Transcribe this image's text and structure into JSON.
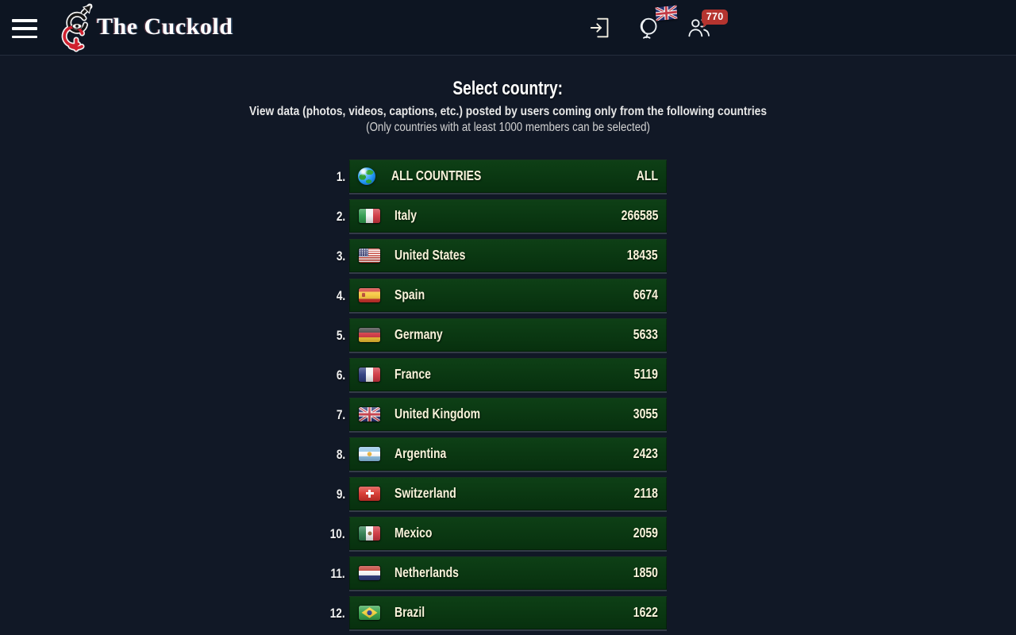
{
  "header": {
    "brand": "The Cuckold",
    "members_badge": "770",
    "icons": [
      "menu-icon",
      "site-logo-icon",
      "login-icon",
      "language-globe-icon",
      "uk-flag-icon",
      "members-icon"
    ]
  },
  "page": {
    "title": "Select country:",
    "subtitle": "View data (photos, videos, captions, etc.) posted by users coming only from the following countries",
    "note": "(Only countries with at least 1000 members can be selected)"
  },
  "countries": [
    {
      "rank": "1.",
      "name": "ALL COUNTRIES",
      "count": "ALL",
      "flag": "globe"
    },
    {
      "rank": "2.",
      "name": "Italy",
      "count": "266585",
      "flag": "it"
    },
    {
      "rank": "3.",
      "name": "United States",
      "count": "18435",
      "flag": "us"
    },
    {
      "rank": "4.",
      "name": "Spain",
      "count": "6674",
      "flag": "es"
    },
    {
      "rank": "5.",
      "name": "Germany",
      "count": "5633",
      "flag": "de"
    },
    {
      "rank": "6.",
      "name": "France",
      "count": "5119",
      "flag": "fr"
    },
    {
      "rank": "7.",
      "name": "United Kingdom",
      "count": "3055",
      "flag": "gb"
    },
    {
      "rank": "8.",
      "name": "Argentina",
      "count": "2423",
      "flag": "ar"
    },
    {
      "rank": "9.",
      "name": "Switzerland",
      "count": "2118",
      "flag": "ch"
    },
    {
      "rank": "10.",
      "name": "Mexico",
      "count": "2059",
      "flag": "mx"
    },
    {
      "rank": "11.",
      "name": "Netherlands",
      "count": "1850",
      "flag": "nl"
    },
    {
      "rank": "12.",
      "name": "Brazil",
      "count": "1622",
      "flag": "br"
    }
  ],
  "colors": {
    "background": "#111826",
    "header_background": "#0d1522",
    "row_top": "#0e4016",
    "row_bottom": "#07300e",
    "badge": "#b5342f",
    "text_cream": "#f8f3da"
  }
}
